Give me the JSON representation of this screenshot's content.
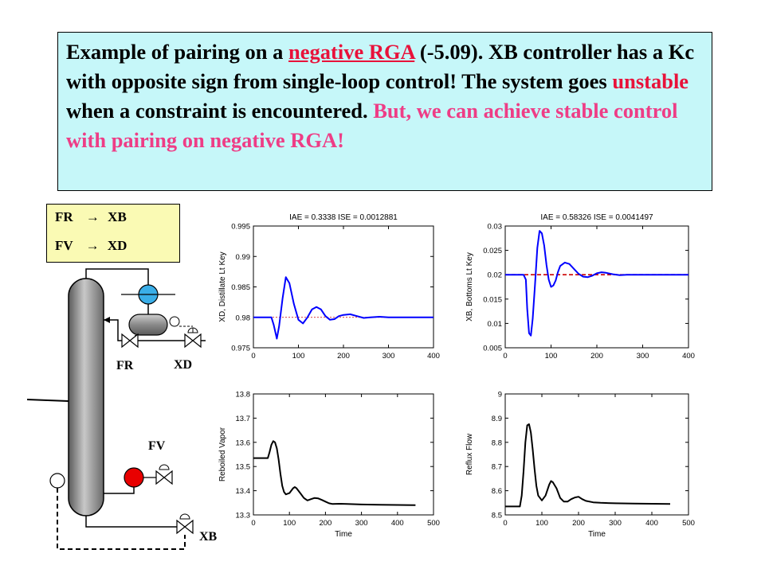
{
  "slide": {
    "sentence1_a": "Example of pairing on a ",
    "sentence1_link": "negative RGA",
    "sentence1_b": " (-5.09).  XB controller has a Kc with opposite sign from single-loop control!  The system goes ",
    "unstable_word": "unstable",
    "sentence2_b": " when a constraint is encountered.  ",
    "emphasis": "But, we can achieve stable control with pairing on negative RGA!"
  },
  "pairing": {
    "row1_left": "FR",
    "row1_right": "XB",
    "row2_left": "FV",
    "row2_right": "XD",
    "arrow": "→"
  },
  "diagram": {
    "fr": "FR",
    "xd": "XD",
    "fv": "FV",
    "xb": "XB"
  },
  "colors": {
    "textbox_bg": "#c6f7f9",
    "pairbox_bg": "#fafab4",
    "red_text": "#e8123a",
    "pink_text": "#ee3d86",
    "series": "#0000ff",
    "setpoint": "#cc0000",
    "valve_top": "#3aaee8",
    "valve_bottom": "#e80000"
  },
  "chart_data": [
    {
      "type": "line",
      "title": "IAE = 0.3338 ISE = 0.0012881",
      "xlabel": "",
      "ylabel": "XD, Distillate Lt Key",
      "xlim": [
        0,
        400
      ],
      "ylim": [
        0.975,
        0.995
      ],
      "xticks": [
        "0",
        "100",
        "200",
        "300",
        "400"
      ],
      "yticks": [
        "0.975",
        "0.98",
        "0.985",
        "0.99",
        "0.995"
      ],
      "setpoint": 0.98,
      "series": [
        {
          "x": [
            0,
            40,
            45,
            52,
            57,
            65,
            72,
            80,
            90,
            100,
            110,
            120,
            130,
            140,
            150,
            160,
            170,
            180,
            190,
            200,
            215,
            230,
            245,
            260,
            280,
            300,
            350,
            400
          ],
          "y": [
            0.98,
            0.98,
            0.9788,
            0.9765,
            0.9785,
            0.9832,
            0.9866,
            0.9856,
            0.9822,
            0.9796,
            0.979,
            0.98,
            0.9813,
            0.9817,
            0.9813,
            0.9802,
            0.9796,
            0.9797,
            0.9802,
            0.9804,
            0.9805,
            0.9802,
            0.9799,
            0.98,
            0.9801,
            0.98,
            0.98,
            0.98
          ]
        }
      ]
    },
    {
      "type": "line",
      "title": "IAE = 0.58326 ISE = 0.0041497",
      "xlabel": "",
      "ylabel": "XB, Bottoms Lt Key",
      "xlim": [
        0,
        400
      ],
      "ylim": [
        0.005,
        0.03
      ],
      "xticks": [
        "0",
        "100",
        "200",
        "300",
        "400"
      ],
      "yticks": [
        "0.005",
        "0.01",
        "0.015",
        "0.02",
        "0.025",
        "0.03"
      ],
      "setpoint": 0.02,
      "series": [
        {
          "x": [
            0,
            40,
            45,
            48,
            52,
            56,
            60,
            65,
            70,
            75,
            80,
            85,
            90,
            95,
            100,
            105,
            110,
            115,
            120,
            130,
            140,
            150,
            160,
            170,
            180,
            190,
            200,
            210,
            220,
            235,
            250,
            265,
            280,
            300,
            350,
            400
          ],
          "y": [
            0.02,
            0.02,
            0.019,
            0.013,
            0.008,
            0.0075,
            0.011,
            0.018,
            0.0255,
            0.029,
            0.0285,
            0.026,
            0.022,
            0.019,
            0.0175,
            0.0178,
            0.0188,
            0.0205,
            0.0218,
            0.0225,
            0.0222,
            0.0212,
            0.0202,
            0.0196,
            0.0195,
            0.0198,
            0.0203,
            0.0205,
            0.0204,
            0.0201,
            0.0199,
            0.02,
            0.02,
            0.02,
            0.02,
            0.02
          ]
        }
      ]
    },
    {
      "type": "line",
      "title": "",
      "xlabel": "Time",
      "ylabel": "Reboiled Vapor",
      "xlim": [
        0,
        500
      ],
      "ylim": [
        13.3,
        13.8
      ],
      "xticks": [
        "0",
        "100",
        "200",
        "300",
        "400",
        "500"
      ],
      "yticks": [
        "13.3",
        "13.4",
        "13.5",
        "13.6",
        "13.7",
        "13.8"
      ],
      "series": [
        {
          "x": [
            0,
            40,
            45,
            50,
            55,
            60,
            65,
            70,
            75,
            80,
            85,
            90,
            100,
            110,
            115,
            120,
            125,
            130,
            140,
            150,
            160,
            170,
            180,
            190,
            200,
            210,
            220,
            240,
            260,
            300,
            350,
            400,
            450
          ],
          "y": [
            13.535,
            13.535,
            13.56,
            13.59,
            13.605,
            13.6,
            13.575,
            13.53,
            13.47,
            13.42,
            13.395,
            13.385,
            13.39,
            13.41,
            13.415,
            13.41,
            13.4,
            13.39,
            13.37,
            13.36,
            13.365,
            13.37,
            13.368,
            13.362,
            13.355,
            13.348,
            13.345,
            13.346,
            13.345,
            13.343,
            13.342,
            13.341,
            13.34
          ]
        }
      ]
    },
    {
      "type": "line",
      "title": "",
      "xlabel": "Time",
      "ylabel": "Reflux Flow",
      "xlim": [
        0,
        500
      ],
      "ylim": [
        8.5,
        9
      ],
      "xticks": [
        "0",
        "100",
        "200",
        "300",
        "400",
        "500"
      ],
      "yticks": [
        "8.5",
        "8.6",
        "8.7",
        "8.8",
        "8.9",
        "9"
      ],
      "series": [
        {
          "x": [
            0,
            40,
            45,
            50,
            55,
            60,
            65,
            70,
            75,
            80,
            85,
            90,
            100,
            110,
            120,
            125,
            130,
            140,
            150,
            160,
            170,
            180,
            190,
            200,
            210,
            220,
            240,
            260,
            300,
            350,
            400,
            450
          ],
          "y": [
            8.535,
            8.535,
            8.58,
            8.68,
            8.8,
            8.87,
            8.875,
            8.84,
            8.77,
            8.69,
            8.62,
            8.58,
            8.56,
            8.58,
            8.625,
            8.64,
            8.635,
            8.61,
            8.57,
            8.555,
            8.555,
            8.565,
            8.572,
            8.575,
            8.565,
            8.558,
            8.552,
            8.55,
            8.548,
            8.547,
            8.546,
            8.545
          ]
        }
      ]
    }
  ]
}
